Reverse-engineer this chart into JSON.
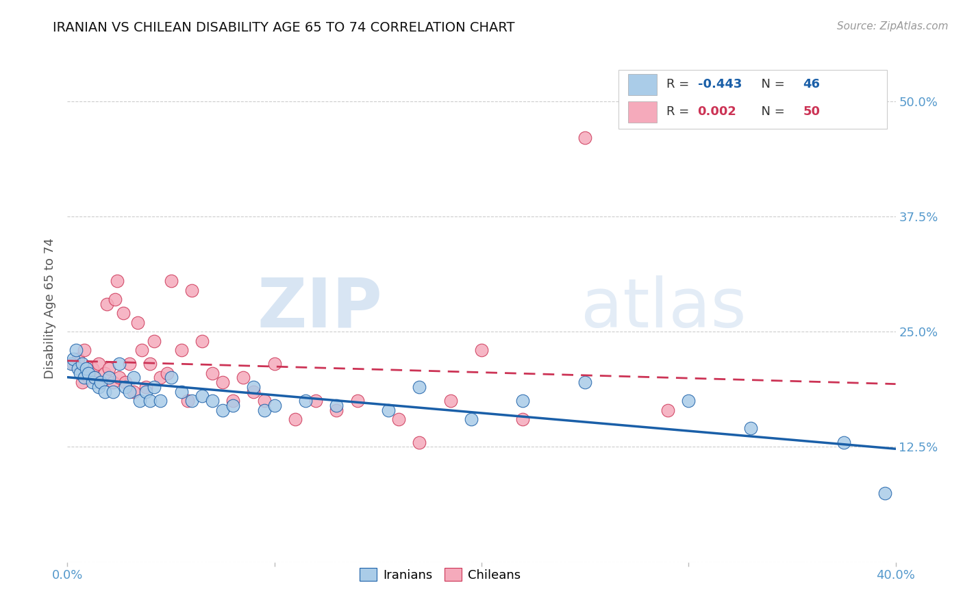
{
  "title": "IRANIAN VS CHILEAN DISABILITY AGE 65 TO 74 CORRELATION CHART",
  "source": "Source: ZipAtlas.com",
  "ylabel": "Disability Age 65 to 74",
  "xlim": [
    0.0,
    0.4
  ],
  "ylim": [
    0.0,
    0.55
  ],
  "iranian_R": "-0.443",
  "iranian_N": "46",
  "chilean_R": "0.002",
  "chilean_N": "50",
  "iranian_color": "#aacce8",
  "chilean_color": "#f5aabb",
  "iranian_line_color": "#1a5fa8",
  "chilean_line_color": "#cc3355",
  "bg_color": "#ffffff",
  "grid_color": "#cccccc",
  "iranians_x": [
    0.002,
    0.003,
    0.004,
    0.005,
    0.006,
    0.007,
    0.008,
    0.009,
    0.01,
    0.012,
    0.013,
    0.015,
    0.016,
    0.018,
    0.02,
    0.022,
    0.025,
    0.028,
    0.03,
    0.032,
    0.035,
    0.038,
    0.04,
    0.042,
    0.045,
    0.05,
    0.055,
    0.06,
    0.065,
    0.07,
    0.075,
    0.08,
    0.09,
    0.095,
    0.1,
    0.115,
    0.13,
    0.155,
    0.17,
    0.195,
    0.22,
    0.25,
    0.3,
    0.33,
    0.375,
    0.395
  ],
  "iranians_y": [
    0.215,
    0.22,
    0.23,
    0.21,
    0.205,
    0.215,
    0.2,
    0.21,
    0.205,
    0.195,
    0.2,
    0.19,
    0.195,
    0.185,
    0.2,
    0.185,
    0.215,
    0.19,
    0.185,
    0.2,
    0.175,
    0.185,
    0.175,
    0.19,
    0.175,
    0.2,
    0.185,
    0.175,
    0.18,
    0.175,
    0.165,
    0.17,
    0.19,
    0.165,
    0.17,
    0.175,
    0.17,
    0.165,
    0.19,
    0.155,
    0.175,
    0.195,
    0.175,
    0.145,
    0.13,
    0.075
  ],
  "chileans_x": [
    0.003,
    0.005,
    0.007,
    0.008,
    0.01,
    0.012,
    0.013,
    0.015,
    0.016,
    0.018,
    0.019,
    0.02,
    0.022,
    0.023,
    0.024,
    0.025,
    0.027,
    0.028,
    0.03,
    0.032,
    0.034,
    0.036,
    0.038,
    0.04,
    0.042,
    0.045,
    0.048,
    0.05,
    0.055,
    0.058,
    0.06,
    0.065,
    0.07,
    0.075,
    0.08,
    0.085,
    0.09,
    0.095,
    0.1,
    0.11,
    0.12,
    0.13,
    0.14,
    0.16,
    0.17,
    0.185,
    0.2,
    0.22,
    0.25,
    0.29
  ],
  "chileans_y": [
    0.215,
    0.22,
    0.195,
    0.23,
    0.2,
    0.21,
    0.2,
    0.215,
    0.195,
    0.205,
    0.28,
    0.21,
    0.195,
    0.285,
    0.305,
    0.2,
    0.27,
    0.195,
    0.215,
    0.185,
    0.26,
    0.23,
    0.19,
    0.215,
    0.24,
    0.2,
    0.205,
    0.305,
    0.23,
    0.175,
    0.295,
    0.24,
    0.205,
    0.195,
    0.175,
    0.2,
    0.185,
    0.175,
    0.215,
    0.155,
    0.175,
    0.165,
    0.175,
    0.155,
    0.13,
    0.175,
    0.23,
    0.155,
    0.46,
    0.165
  ]
}
